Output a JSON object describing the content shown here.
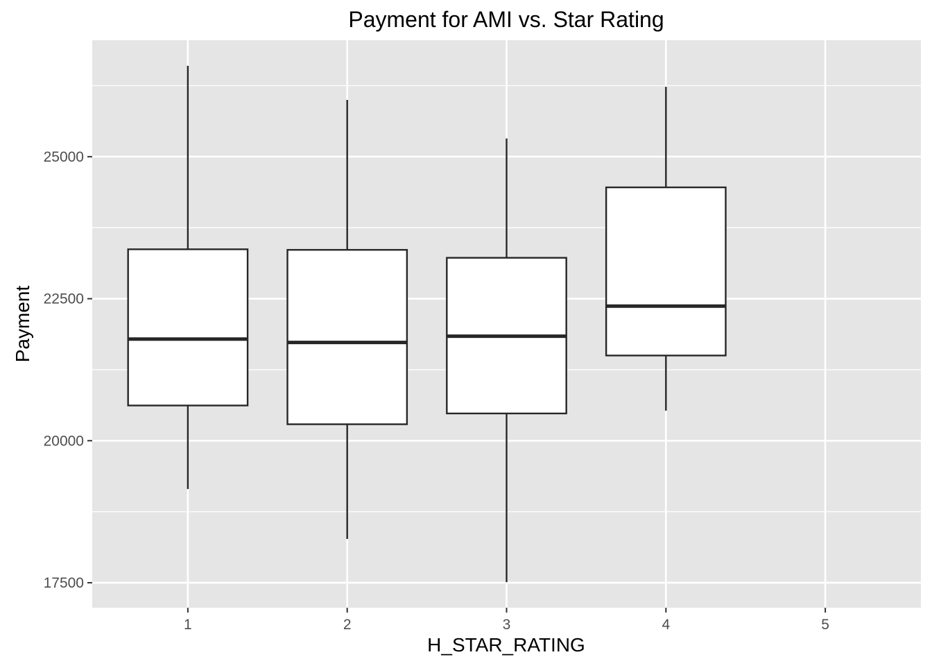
{
  "chart_data": {
    "type": "boxplot",
    "title": "Payment for AMI vs. Star Rating",
    "xlabel": "H_STAR_RATING",
    "ylabel": "Payment",
    "categories": [
      "1",
      "2",
      "3",
      "4",
      "5"
    ],
    "yticks": [
      17500,
      20000,
      22500,
      25000
    ],
    "ytick_labels": [
      "17500",
      "20000",
      "22500",
      "25000"
    ],
    "ylim": [
      17060,
      27050
    ],
    "xlim": [
      0.4,
      5.6
    ],
    "grid": true,
    "legend": "none",
    "boxes": [
      {
        "category": "1",
        "whisker_low": 19150,
        "q1": 20620,
        "median": 21790,
        "q3": 23370,
        "whisker_high": 26600
      },
      {
        "category": "2",
        "whisker_low": 18270,
        "q1": 20290,
        "median": 21730,
        "q3": 23360,
        "whisker_high": 26000
      },
      {
        "category": "3",
        "whisker_low": 17510,
        "q1": 20480,
        "median": 21840,
        "q3": 23220,
        "whisker_high": 25320
      },
      {
        "category": "4",
        "whisker_low": 20530,
        "q1": 21500,
        "median": 22370,
        "q3": 24460,
        "whisker_high": 26230
      }
    ],
    "colors": {
      "panel": "#e5e5e5",
      "grid": "#ffffff",
      "box_fill": "#ffffff",
      "box_stroke": "#262626",
      "tick_text": "#4d4d4d",
      "title_text": "#000000"
    }
  }
}
